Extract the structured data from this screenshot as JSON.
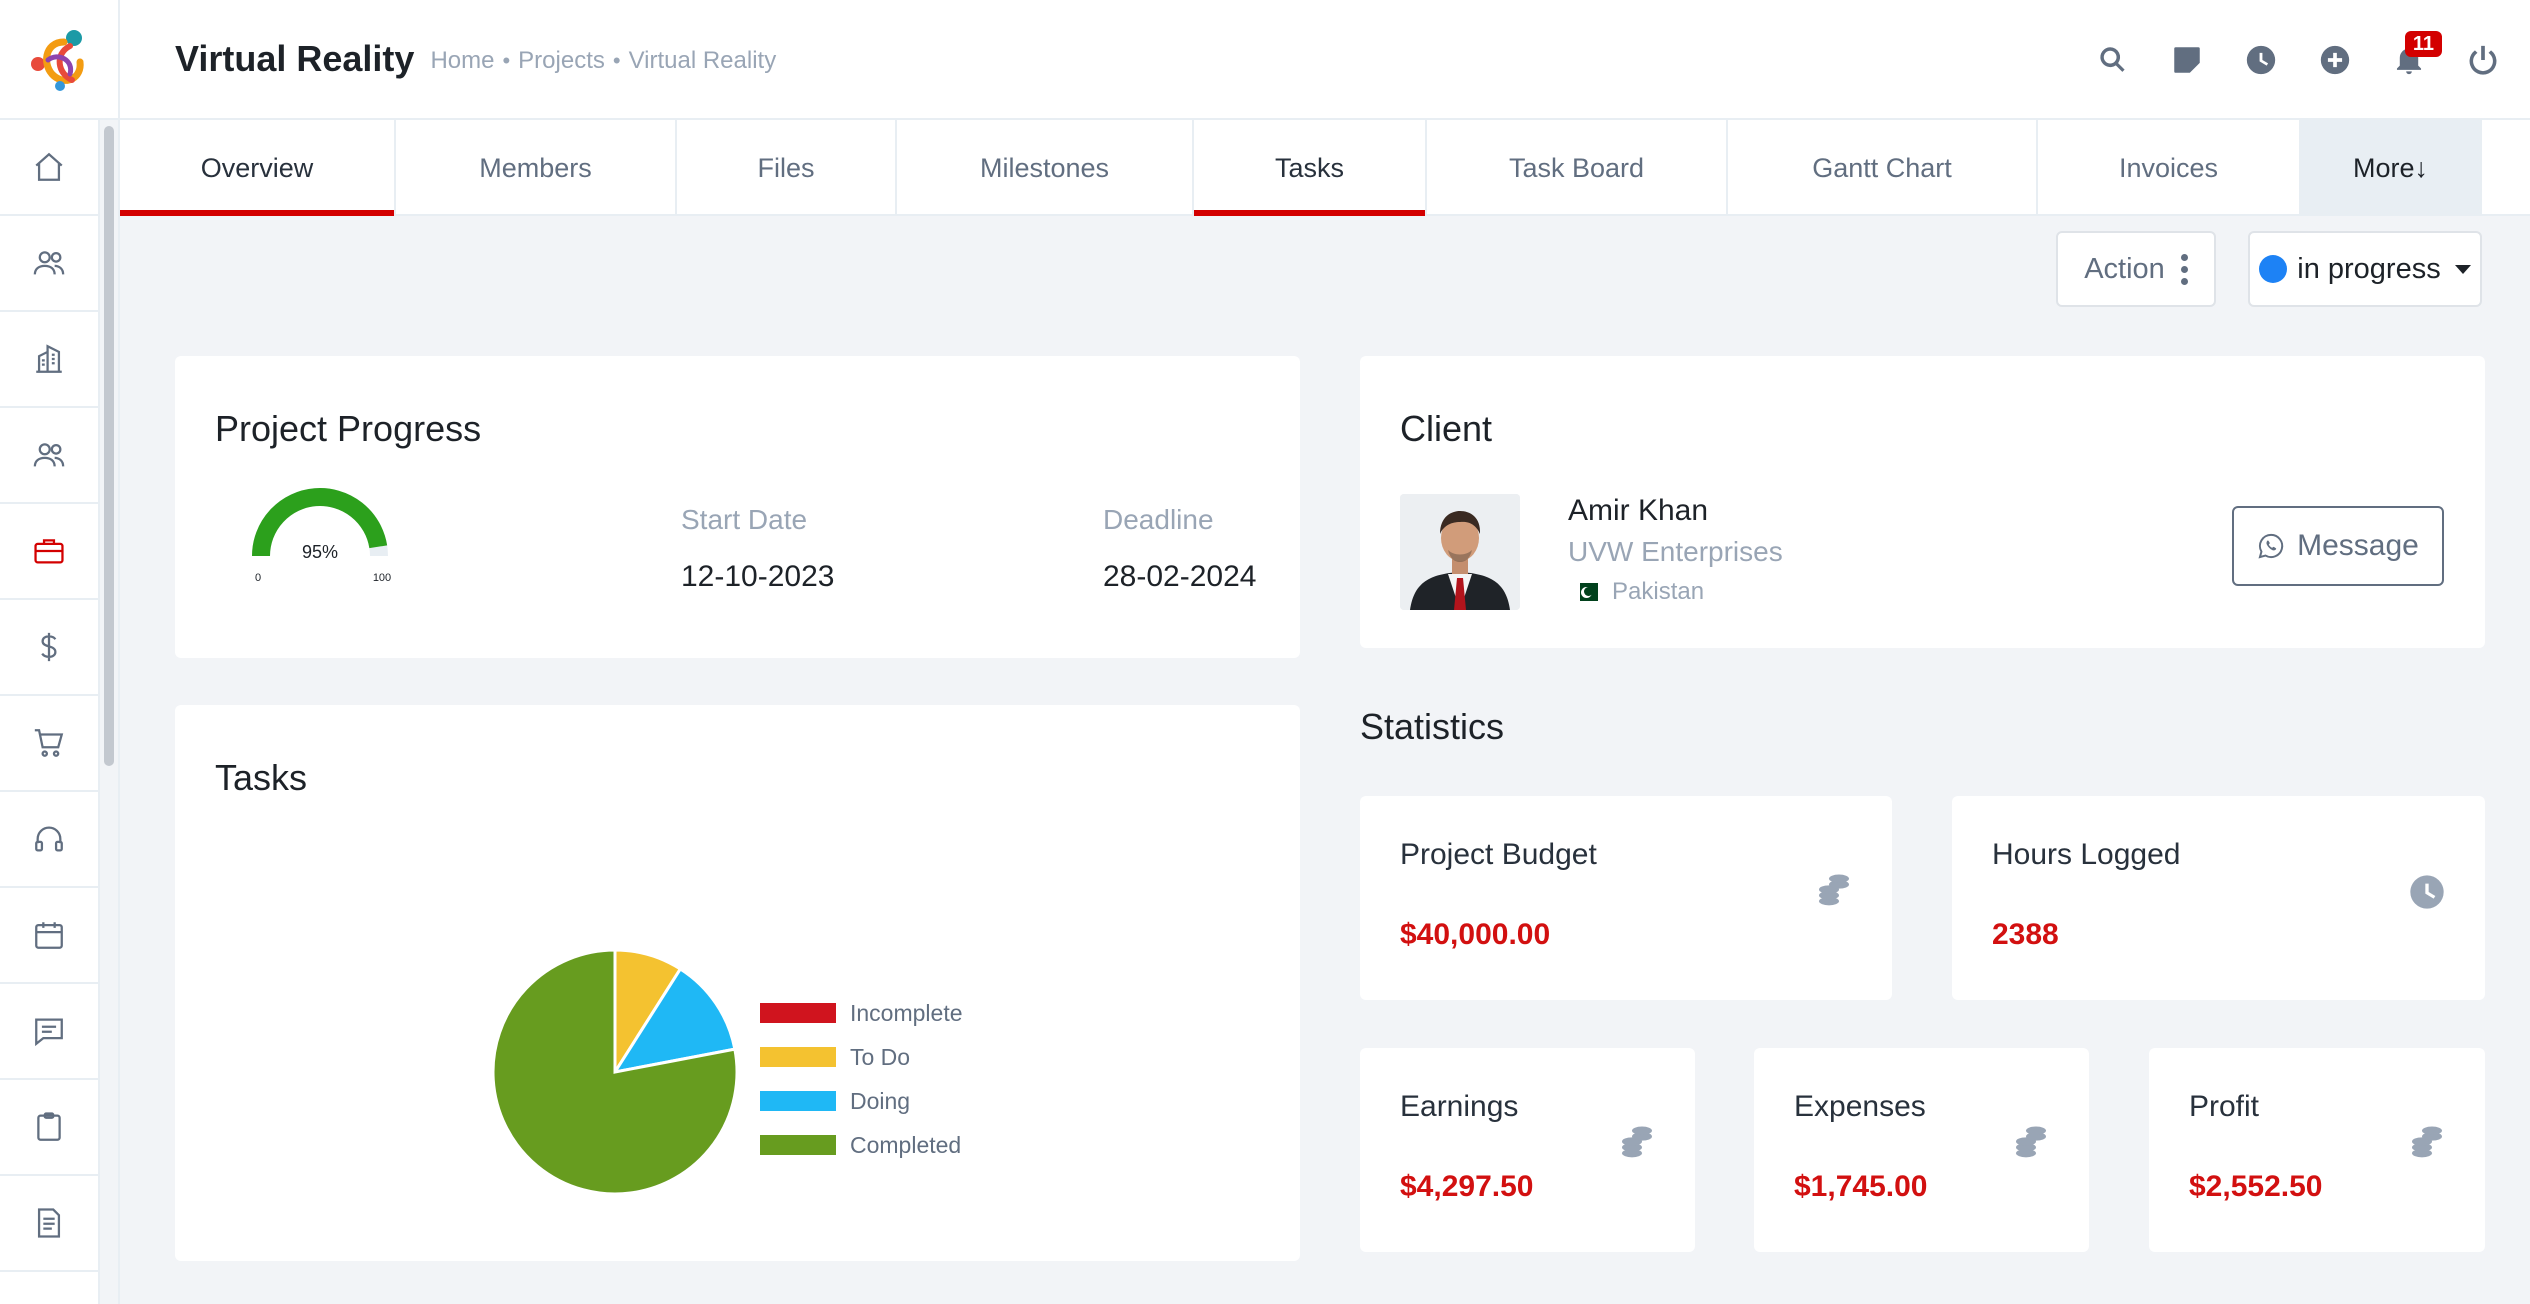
{
  "header": {
    "title": "Virtual Reality",
    "breadcrumb": [
      "Home",
      "Projects",
      "Virtual Reality"
    ],
    "notification_count": "11",
    "icons": [
      "search-icon",
      "sticky-note-icon",
      "clock-icon",
      "plus-circle-icon",
      "bell-icon",
      "power-icon"
    ]
  },
  "sidebar": {
    "items": [
      "home-icon",
      "users-icon",
      "building-icon",
      "team-icon",
      "briefcase-icon",
      "dollar-icon",
      "cart-icon",
      "headset-icon",
      "calendar-icon",
      "chat-icon",
      "clipboard-icon",
      "document-icon"
    ]
  },
  "tabs": [
    {
      "label": "Overview"
    },
    {
      "label": "Members"
    },
    {
      "label": "Files"
    },
    {
      "label": "Milestones"
    },
    {
      "label": "Tasks"
    },
    {
      "label": "Task Board"
    },
    {
      "label": "Gantt Chart"
    },
    {
      "label": "Invoices"
    },
    {
      "label": "More↓"
    }
  ],
  "actions": {
    "action_label": "Action",
    "status_label": "in progress",
    "status_color": "#1d82f5"
  },
  "progress": {
    "title": "Project Progress",
    "percent": 95,
    "percent_label": "95%",
    "min_label": "0",
    "max_label": "100",
    "start_label": "Start Date",
    "start_value": "12-10-2023",
    "deadline_label": "Deadline",
    "deadline_value": "28-02-2024",
    "gauge_color": "#2ca01c"
  },
  "client": {
    "title": "Client",
    "name": "Amir Khan",
    "company": "UVW Enterprises",
    "country": "Pakistan",
    "message_label": "Message"
  },
  "tasks": {
    "title": "Tasks"
  },
  "chart_data": {
    "type": "pie",
    "title": "Tasks",
    "categories": [
      "Incomplete",
      "To Do",
      "Doing",
      "Completed"
    ],
    "values": [
      0,
      9,
      13,
      78
    ],
    "colors": [
      "#d0141e",
      "#f4c230",
      "#1fb8f5",
      "#679c1f"
    ],
    "legend_position": "right"
  },
  "statistics": {
    "title": "Statistics",
    "cards": [
      {
        "label": "Project Budget",
        "value": "$40,000.00",
        "icon": "coins-icon"
      },
      {
        "label": "Hours Logged",
        "value": "2388",
        "icon": "clock-icon"
      },
      {
        "label": "Earnings",
        "value": "$4,297.50",
        "icon": "coins-icon"
      },
      {
        "label": "Expenses",
        "value": "$1,745.00",
        "icon": "coins-icon"
      },
      {
        "label": "Profit",
        "value": "$2,552.50",
        "icon": "coins-icon"
      }
    ]
  }
}
